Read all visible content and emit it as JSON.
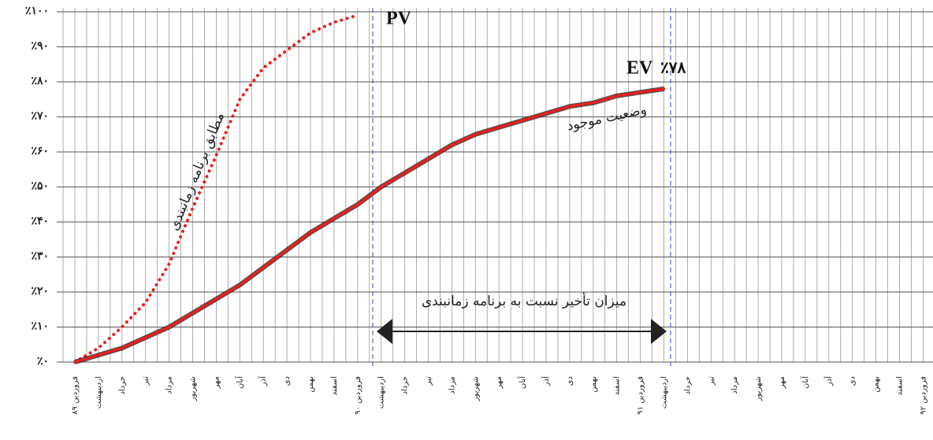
{
  "chart_data": {
    "type": "line",
    "categories": [
      "فروردین ۸۹",
      "اردیبهشت",
      "خرداد",
      "تیر",
      "مرداد",
      "شهریور",
      "مهر",
      "آبان",
      "آذر",
      "دی",
      "بهمن",
      "اسفند",
      "فروردین ۹۰",
      "اردیبهشت",
      "خرداد",
      "تیر",
      "مرداد",
      "شهریور",
      "مهر",
      "آبان",
      "آذر",
      "دی",
      "بهمن",
      "اسفند",
      "فروردین ۹۱",
      "اردیبهشت",
      "خرداد",
      "تیر",
      "مرداد",
      "شهریور",
      "مهر",
      "آبان",
      "آذر",
      "دی",
      "بهمن",
      "اسفند",
      "فروردین ۹۲"
    ],
    "series": [
      {
        "name": "PV",
        "color": "#e8201e",
        "style": "dotted",
        "values": [
          0,
          4,
          10,
          17,
          28,
          44,
          59,
          75,
          84,
          89,
          94,
          97,
          99,
          null,
          null,
          null,
          null,
          null,
          null,
          null,
          null,
          null,
          null,
          null,
          null,
          null,
          null,
          null,
          null,
          null,
          null,
          null,
          null,
          null,
          null,
          null,
          null
        ]
      },
      {
        "name": "EV",
        "color": "#e8201e",
        "style": "solid",
        "values": [
          0,
          2,
          4,
          7,
          10,
          14,
          18,
          22,
          27,
          32,
          37,
          41,
          45,
          50,
          54,
          58,
          62,
          65,
          67,
          69,
          71,
          73,
          74,
          76,
          77,
          78,
          null,
          null,
          null,
          null,
          null,
          null,
          null,
          null,
          null,
          null,
          null
        ]
      }
    ],
    "ylim": [
      0,
      100
    ],
    "yticks": [
      {
        "value": 0,
        "label": "٪۰"
      },
      {
        "value": 10,
        "label": "٪۱۰"
      },
      {
        "value": 20,
        "label": "٪۲۰"
      },
      {
        "value": 30,
        "label": "٪۳۰"
      },
      {
        "value": 40,
        "label": "٪۴۰"
      },
      {
        "value": 50,
        "label": "٪۵۰"
      },
      {
        "value": 60,
        "label": "٪۶۰"
      },
      {
        "value": 70,
        "label": "٪۷۰"
      },
      {
        "value": 80,
        "label": "٪۸۰"
      },
      {
        "value": 90,
        "label": "٪۹۰"
      },
      {
        "value": 100,
        "label": "٪۱۰۰"
      }
    ],
    "grid": true,
    "annotations": {
      "ev_value": "٪۷۸",
      "ev_curve": "وضعیت موجود",
      "pv_curve": "مطابق برنامه زمانبندی",
      "delay": "میزان تأخیر نسبت به برنامه زمانبندی"
    }
  }
}
